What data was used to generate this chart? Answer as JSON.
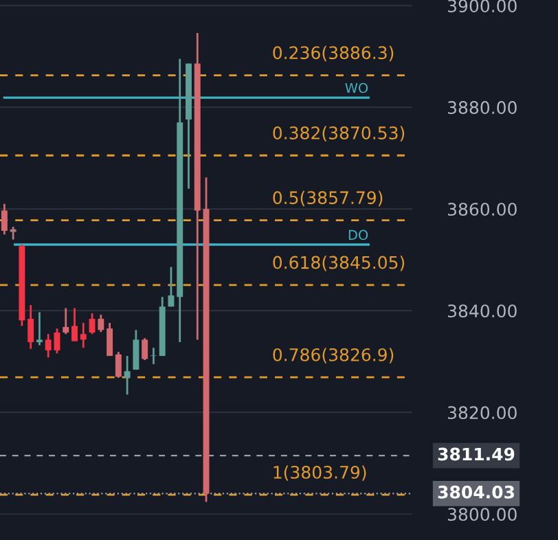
{
  "chart_data": {
    "type": "candlestick",
    "categories": [
      null,
      null,
      null,
      null,
      null,
      null,
      null,
      null,
      null,
      null,
      null,
      null,
      null,
      null,
      null,
      null,
      null,
      null,
      null,
      null,
      null,
      null,
      null,
      null,
      null,
      null,
      null,
      null,
      null,
      null,
      null,
      null,
      null,
      null,
      null,
      null,
      null,
      null,
      null,
      null,
      null,
      null,
      null,
      null,
      null,
      null,
      null
    ],
    "ohlc": [
      [
        3859.7,
        3861,
        3855,
        3855.7
      ],
      [
        3856,
        3856.5,
        3854,
        3855.5
      ],
      [
        3852.7,
        3853,
        3837,
        3838.1
      ],
      [
        3838.4,
        3841.1,
        3832.5,
        3833.8
      ],
      [
        3833.8,
        3839.7,
        3833.2,
        3834.3
      ],
      [
        3834.3,
        3835.4,
        3830.8,
        3832.2
      ],
      [
        3835.7,
        3836.5,
        3831.6,
        3832.2
      ],
      [
        3836.8,
        3840.5,
        3835.4,
        3835.7
      ],
      [
        3837,
        3840.5,
        3834,
        3834
      ],
      [
        3835.4,
        3837.6,
        3832.7,
        3834.3
      ],
      [
        3838.4,
        3839.5,
        3835.4,
        3835.7
      ],
      [
        3838.4,
        3839.2,
        3835.8,
        3836.2
      ],
      [
        3836.5,
        3837.6,
        3831.1,
        3831.1
      ],
      [
        3831.4,
        3831.9,
        3826.8,
        3827
      ],
      [
        3826.8,
        3831.1,
        3823.5,
        3828.1
      ],
      [
        3828.4,
        3836.2,
        3828.4,
        3834.3
      ],
      [
        3834.3,
        3834.6,
        3830.3,
        3830.5
      ],
      [
        3831.1,
        3832.7,
        3829.5,
        3831.2
      ],
      [
        3831.1,
        3842.7,
        3831.1,
        3840.8
      ],
      [
        3840.8,
        3848.6,
        3840.8,
        3843
      ],
      [
        3842.7,
        3889.5,
        3833.8,
        3877
      ],
      [
        3877.6,
        3888.6,
        3864,
        3888.6
      ],
      [
        3888.6,
        3894.6,
        3834.3,
        3859.7
      ],
      [
        3860,
        3866.2,
        3802.4,
        3804.03
      ],
      null,
      null,
      null,
      null,
      null,
      null,
      null,
      null,
      null,
      null,
      null,
      null,
      null,
      null,
      null,
      null,
      null,
      null,
      null,
      null,
      null,
      null,
      null
    ],
    "colors": [
      "#d36a6f",
      "#b07a7a",
      "#f23645",
      "#f23645",
      "#5e9f98",
      "#f23645",
      "#f23645",
      "#d36a6f",
      "#f23645",
      "#f23645",
      "#f23645",
      "#d36a6f",
      "#d36a6f",
      "#d36a6f",
      "#5e9f98",
      "#5e9f98",
      "#d36a6f",
      "#5e9f98",
      "#5e9f98",
      "#5e9f98",
      "#5e9f98",
      "#5e9f98",
      "#d36a6f",
      "#d36a6f",
      null,
      null,
      null,
      null,
      null,
      null,
      null,
      null,
      null,
      null,
      null,
      null,
      null,
      null,
      null,
      null,
      null,
      null,
      null,
      null,
      null,
      null,
      null
    ],
    "ylim": [
      3794.9,
      3901.1
    ],
    "yticks": [
      {
        "value": 3800,
        "label": "3800.00"
      },
      {
        "value": 3820,
        "label": "3820.00"
      },
      {
        "value": 3840,
        "label": "3840.00"
      },
      {
        "value": 3860,
        "label": "3860.00"
      },
      {
        "value": 3880,
        "label": "3880.00"
      },
      {
        "value": 3900,
        "label": "3900.00"
      }
    ],
    "grid": "y",
    "ref_lines": [
      {
        "axis": "y",
        "value": 3886.3,
        "label": "0.236(3886.3)",
        "color": "#e39b2d",
        "line_style": "dashed"
      },
      {
        "axis": "y",
        "value": 3870.53,
        "label": "0.382(3870.53)",
        "color": "#e39b2d",
        "line_style": "dashed"
      },
      {
        "axis": "y",
        "value": 3857.79,
        "label": "0.5(3857.79)",
        "color": "#e39b2d",
        "line_style": "dashed"
      },
      {
        "axis": "y",
        "value": 3845.05,
        "label": "0.618(3845.05)",
        "color": "#e39b2d",
        "line_style": "dashed"
      },
      {
        "axis": "y",
        "value": 3826.9,
        "label": "0.786(3826.9)",
        "color": "#e39b2d",
        "line_style": "dashed"
      },
      {
        "axis": "y",
        "value": 3803.79,
        "label": "1(3803.79)",
        "color": "#e39b2d",
        "line_style": "dashed"
      },
      {
        "axis": "y",
        "value": 3881.9,
        "label": "WO",
        "color": "#3fb3c4",
        "line_style": "solid"
      },
      {
        "axis": "y",
        "value": 3853,
        "label": "DO",
        "color": "#3fb3c4",
        "line_style": "solid"
      },
      {
        "axis": "y",
        "value": 3811.49,
        "label": "3811.49",
        "color": "#9aa0ab",
        "line_style": "dashed"
      },
      {
        "axis": "y",
        "value": 3804.03,
        "label": "3804.03",
        "color": "#9aa0ab",
        "line_style": "dotted"
      }
    ]
  }
}
